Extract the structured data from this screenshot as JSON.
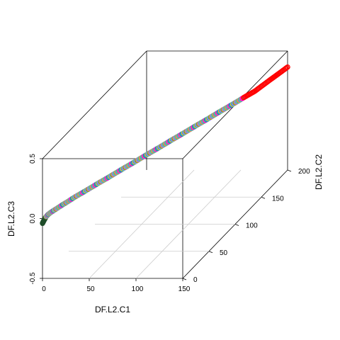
{
  "chart_data": {
    "type": "scatter",
    "subtype": "3d-scatter",
    "title": "",
    "xlabel": "DF.L2.C1",
    "ylabel": "DF.L2.C2",
    "zlabel": "DF.L2.C3",
    "xlim": [
      0,
      150
    ],
    "ylim": [
      0,
      200
    ],
    "zlim": [
      -0.5,
      0.5
    ],
    "x_ticks": [
      "0",
      "50",
      "100",
      "150"
    ],
    "y_ticks": [
      "0",
      "50",
      "100",
      "150",
      "200"
    ],
    "z_ticks": [
      "-0.5",
      "0.0",
      "0.5"
    ],
    "grid": true,
    "marker": "open-circle",
    "points_description": "Rising curve: x from about 0 to 150 and y from 0 to 200 together, z from about -0.04 to 0.36; start colors dark green/black, middle multicolor, end red",
    "series": [
      {
        "x": [
          0,
          1,
          2,
          3,
          5,
          8,
          12,
          16,
          20,
          25,
          30,
          35,
          40,
          45,
          50,
          55,
          60,
          65,
          70,
          75,
          80,
          85,
          90,
          95,
          100,
          105,
          110,
          115,
          120,
          125,
          130,
          135,
          140,
          145,
          150
        ],
        "y": [
          0,
          1,
          3,
          5,
          7,
          10,
          16,
          21,
          27,
          33,
          40,
          47,
          53,
          60,
          67,
          73,
          80,
          87,
          93,
          100,
          107,
          113,
          120,
          127,
          133,
          140,
          147,
          153,
          160,
          167,
          173,
          180,
          187,
          193,
          200
        ],
        "z": [
          -0.04,
          -0.02,
          0.0,
          0.01,
          0.02,
          0.03,
          0.04,
          0.05,
          0.06,
          0.07,
          0.08,
          0.09,
          0.1,
          0.11,
          0.12,
          0.13,
          0.14,
          0.15,
          0.16,
          0.17,
          0.18,
          0.19,
          0.2,
          0.21,
          0.22,
          0.23,
          0.24,
          0.25,
          0.26,
          0.27,
          0.28,
          0.3,
          0.32,
          0.34,
          0.36
        ]
      }
    ],
    "colors": {
      "start": "#1f4d2a",
      "palette": [
        "#ff00ff",
        "#00cc66",
        "#3366ff",
        "#ffcc00",
        "#00cccc",
        "#cc66ff",
        "#66cc00",
        "#ff6666",
        "#6699ff",
        "#999999",
        "#33cc99",
        "#ff9933",
        "#9966cc",
        "#00ff99",
        "#ff3399"
      ],
      "end": "#ff0000",
      "box": "#000000",
      "grid": "#cccccc"
    }
  }
}
